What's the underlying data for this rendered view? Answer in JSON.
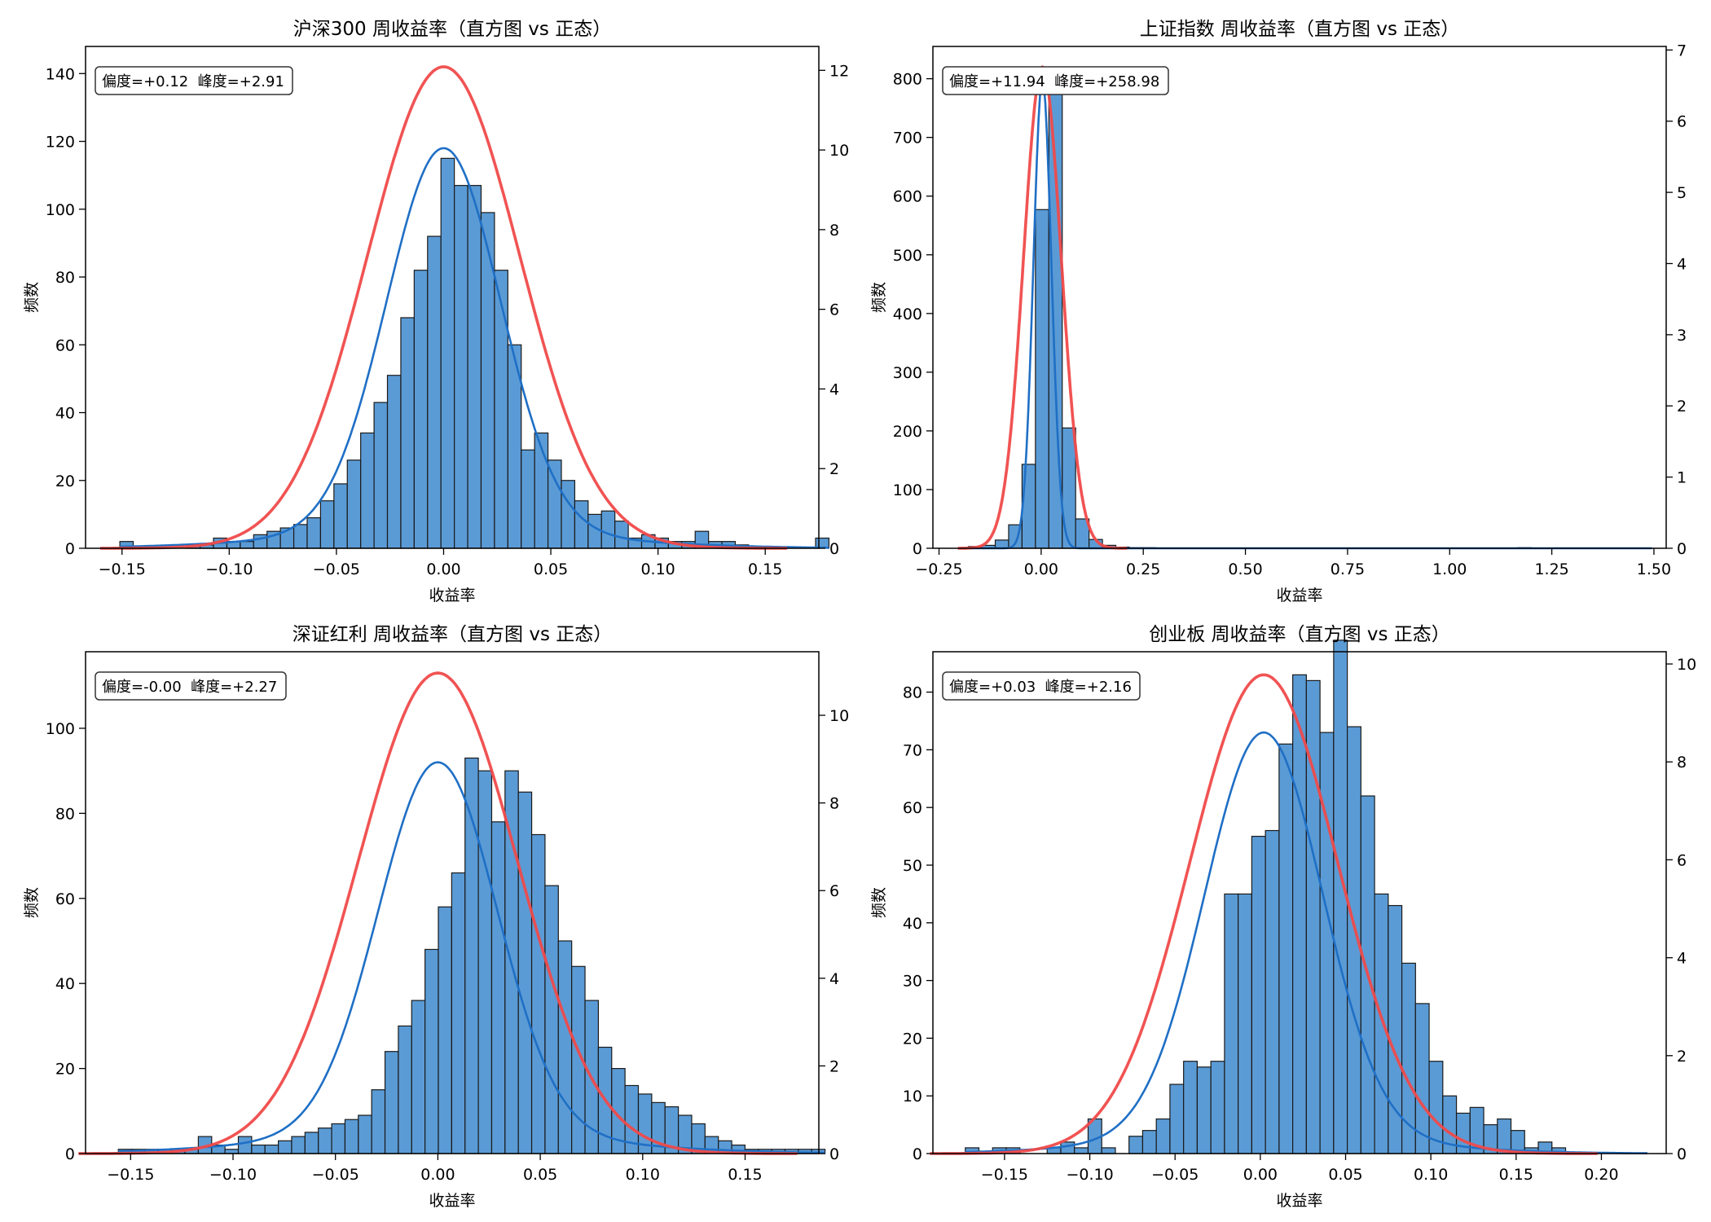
{
  "colors": {
    "bar_fill": "#5b9bd5",
    "bar_edge": "#1a1a1a",
    "kde_line": "#1f6fc5",
    "normal_line": "#f04a4a",
    "annotation_edge": "#333333"
  },
  "chart_data": [
    {
      "type": "bar",
      "title": "沪深300 周收益率（直方图 vs 正态）",
      "xlabel": "收益率",
      "ylabel": "频数",
      "annotation": "偏度=+0.12  峰度=+2.91",
      "xlim": [
        -0.167,
        0.175
      ],
      "ylim": [
        0,
        148
      ],
      "y2lim": [
        0,
        12.6
      ],
      "xticks": [
        -0.15,
        -0.1,
        -0.05,
        0.0,
        0.05,
        0.1,
        0.15
      ],
      "xtick_labels": [
        "−0.15",
        "−0.10",
        "−0.05",
        "0.00",
        "0.05",
        "0.10",
        "0.15"
      ],
      "yticks": [
        0,
        20,
        40,
        60,
        80,
        100,
        120,
        140
      ],
      "y2ticks": [
        0,
        2,
        4,
        6,
        8,
        10,
        12
      ],
      "bin_start": -0.151,
      "bin_width": 0.00624,
      "values": [
        2,
        0,
        0,
        0,
        0,
        1,
        1,
        3,
        2,
        2,
        4,
        5,
        6,
        7,
        9,
        14,
        19,
        26,
        34,
        43,
        51,
        68,
        82,
        92,
        115,
        107,
        107,
        99,
        82,
        60,
        29,
        34,
        26,
        20,
        14,
        10,
        11,
        8,
        3,
        4,
        3,
        2,
        2,
        5,
        2,
        2,
        1,
        0,
        0,
        0,
        0,
        0,
        3
      ],
      "normal": {
        "mu": 0.0,
        "sigma": 0.0356,
        "peak": 142
      },
      "kde": {
        "mu": 0.0,
        "sigma": 0.0265,
        "peak": 118,
        "tail_w": 0.04,
        "tail_sigma": 0.07
      }
    },
    {
      "type": "bar",
      "title": "上证指数 周收益率（直方图 vs 正态）",
      "xlabel": "收益率",
      "ylabel": "频数",
      "annotation": "偏度=+11.94  峰度=+258.98",
      "xlim": [
        -0.265,
        1.53
      ],
      "ylim": [
        0,
        855
      ],
      "y2lim": [
        0,
        7.05
      ],
      "xticks": [
        -0.25,
        0.0,
        0.25,
        0.5,
        0.75,
        1.0,
        1.25,
        1.5
      ],
      "xtick_labels": [
        "−0.25",
        "0.00",
        "0.25",
        "0.50",
        "0.75",
        "1.00",
        "1.25",
        "1.50"
      ],
      "yticks": [
        0,
        100,
        200,
        300,
        400,
        500,
        600,
        700,
        800
      ],
      "y2ticks": [
        0,
        1,
        2,
        3,
        4,
        5,
        6,
        7
      ],
      "bin_start": -0.178,
      "bin_width": 0.0328,
      "values": [
        3,
        5,
        14,
        40,
        143,
        577,
        790,
        205,
        50,
        15,
        5,
        2,
        1,
        1,
        0,
        0,
        0,
        0,
        0,
        0,
        0,
        0,
        0,
        0,
        0,
        0,
        0,
        0,
        0,
        0,
        0,
        0,
        0,
        0,
        0,
        0,
        0,
        0,
        0,
        0,
        0,
        1,
        0,
        0,
        0,
        0,
        0,
        0,
        0,
        0,
        0
      ],
      "normal": {
        "mu": 0.003,
        "sigma": 0.046,
        "peak": 820
      },
      "kde": {
        "mu": 0.003,
        "sigma": 0.022,
        "peak": 800,
        "tail_w": 0.0,
        "tail_sigma": 0.1
      }
    },
    {
      "type": "bar",
      "title": "深证红利 周收益率（直方图 vs 正态）",
      "xlabel": "收益率",
      "ylabel": "频数",
      "annotation": "偏度=-0.00  峰度=+2.27",
      "xlim": [
        -0.172,
        0.186
      ],
      "ylim": [
        0,
        118
      ],
      "y2lim": [
        0,
        11.45
      ],
      "xticks": [
        -0.15,
        -0.1,
        -0.05,
        0.0,
        0.05,
        0.1,
        0.15
      ],
      "xtick_labels": [
        "−0.15",
        "−0.10",
        "−0.05",
        "0.00",
        "0.05",
        "0.10",
        "0.15"
      ],
      "yticks": [
        0,
        20,
        40,
        60,
        80,
        100
      ],
      "y2ticks": [
        0,
        2,
        4,
        6,
        8,
        10
      ],
      "bin_start": -0.156,
      "bin_width": 0.00651,
      "values": [
        1,
        1,
        1,
        1,
        1,
        1,
        4,
        2,
        1,
        4,
        2,
        2,
        3,
        4,
        5,
        6,
        7,
        8,
        9,
        15,
        24,
        30,
        36,
        48,
        58,
        66,
        93,
        90,
        78,
        90,
        85,
        75,
        63,
        50,
        44,
        36,
        25,
        20,
        16,
        14,
        12,
        11,
        9,
        7,
        4,
        3,
        2,
        1,
        1,
        1,
        1,
        1,
        1
      ],
      "normal": {
        "mu": 0.0,
        "sigma": 0.039,
        "peak": 113
      },
      "kde": {
        "mu": 0.0,
        "sigma": 0.029,
        "peak": 92,
        "tail_w": 0.05,
        "tail_sigma": 0.075
      }
    },
    {
      "type": "bar",
      "title": "创业板 周收益率（直方图 vs 正态）",
      "xlabel": "收益率",
      "ylabel": "频数",
      "annotation": "偏度=+0.03  峰度=+2.16",
      "xlim": [
        -0.192,
        0.238
      ],
      "ylim": [
        0,
        87
      ],
      "y2lim": [
        0,
        10.25
      ],
      "xticks": [
        -0.15,
        -0.1,
        -0.05,
        0.0,
        0.05,
        0.1,
        0.15,
        0.2
      ],
      "xtick_labels": [
        "−0.15",
        "−0.10",
        "−0.05",
        "0.00",
        "0.05",
        "0.10",
        "0.15",
        "0.20"
      ],
      "yticks": [
        0,
        10,
        20,
        30,
        40,
        50,
        60,
        70,
        80
      ],
      "y2ticks": [
        0,
        2,
        4,
        6,
        8,
        10
      ],
      "bin_start": -0.173,
      "bin_width": 0.008,
      "values": [
        1,
        0,
        1,
        1,
        0,
        0,
        1,
        2,
        1,
        6,
        1,
        0,
        3,
        4,
        6,
        12,
        16,
        15,
        16,
        45,
        45,
        55,
        56,
        71,
        83,
        82,
        73,
        89,
        74,
        62,
        45,
        43,
        33,
        26,
        16,
        10,
        7,
        8,
        5,
        6,
        4,
        1,
        2,
        1,
        0,
        0,
        0,
        0,
        0,
        0
      ],
      "normal": {
        "mu": 0.002,
        "sigma": 0.0435,
        "peak": 83
      },
      "kde": {
        "mu": 0.002,
        "sigma": 0.0345,
        "peak": 73,
        "tail_w": 0.04,
        "tail_sigma": 0.08
      }
    }
  ]
}
